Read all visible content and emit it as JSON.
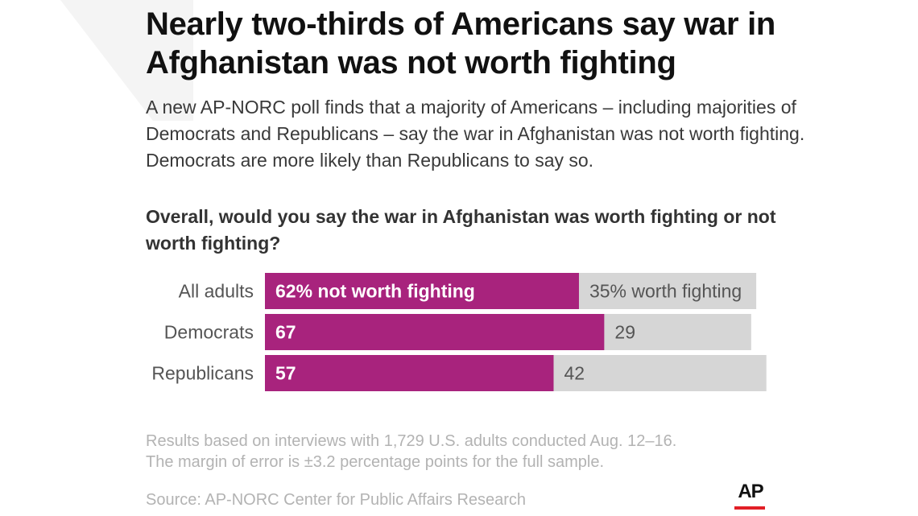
{
  "header": {
    "headline": "Nearly two-thirds of Americans say war in Afghanistan was not worth fighting",
    "intro": "A new AP-NORC poll finds that a majority of Americans – including majorities of Democrats and Republicans – say the war in Afghanistan was not worth fighting. Democrats are more likely than Republicans to say so."
  },
  "chart_data": {
    "type": "bar",
    "orientation": "horizontal",
    "stacked": true,
    "title": "Overall, would you say the war in Afghanistan was worth fighting or not worth fighting?",
    "categories": [
      "All adults",
      "Democrats",
      "Republicans"
    ],
    "series": [
      {
        "name": "not worth fighting",
        "values": [
          62,
          67,
          57
        ],
        "labels": [
          "62% not worth fighting",
          "67",
          "57"
        ]
      },
      {
        "name": "worth fighting",
        "values": [
          35,
          29,
          42
        ],
        "labels": [
          "35% worth fighting",
          "29",
          "42"
        ]
      }
    ],
    "xlim": [
      0,
      100
    ],
    "grid": false,
    "colors": {
      "not worth fighting": "#a8237d",
      "worth fighting": "#d6d6d6"
    }
  },
  "footer": {
    "note_line1": "Results based on interviews with 1,729 U.S. adults conducted Aug. 12–16.",
    "note_line2": "The margin of error is ±3.2 percentage points for the full sample.",
    "source": "Source: AP-NORC Center for Public Affairs Research",
    "logo_text": "AP"
  },
  "colors": {
    "accent": "#a8237d",
    "neutral_bar": "#d6d6d6",
    "logo_red": "#e21f26"
  }
}
